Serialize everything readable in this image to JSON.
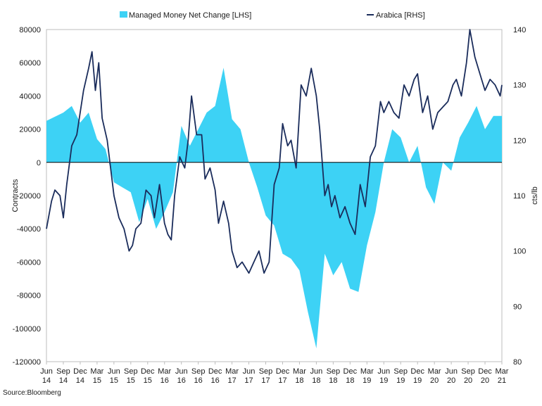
{
  "chart_data": {
    "type": "area+line",
    "title": "",
    "legend": [
      "Managed Money Net Change [LHS]",
      "Arabica [RHS]"
    ],
    "legend_position": "top",
    "ylabel_left": "Contracts",
    "ylabel_right": "cts/lb",
    "ylim_left": [
      -120000,
      80000
    ],
    "ylim_right": [
      80,
      140
    ],
    "yticks_left": [
      "80000",
      "60000",
      "40000",
      "20000",
      "0",
      "-20000",
      "-40000",
      "-60000",
      "-80000",
      "-100000",
      "-120000"
    ],
    "yticks_right": [
      "140",
      "130",
      "120",
      "110",
      "100",
      "90",
      "80"
    ],
    "xticks_month": [
      "Jun",
      "Sep",
      "Dec",
      "Mar",
      "Jun",
      "Sep",
      "Dec",
      "Mar",
      "Jun",
      "Sep",
      "Dec",
      "Mar",
      "Jun",
      "Sep",
      "Dec",
      "Mar",
      "Jun",
      "Sep",
      "Dec",
      "Mar",
      "Jun",
      "Sep",
      "Dec",
      "Mar",
      "Jun",
      "Sep",
      "Dec",
      "Mar"
    ],
    "xticks_year": [
      "14",
      "14",
      "14",
      "15",
      "15",
      "15",
      "15",
      "16",
      "16",
      "16",
      "16",
      "17",
      "17",
      "17",
      "17",
      "18",
      "18",
      "18",
      "18",
      "19",
      "19",
      "19",
      "19",
      "20",
      "20",
      "20",
      "20",
      "21"
    ],
    "series": [
      {
        "name": "Managed Money Net Change [LHS]",
        "axis": "left",
        "color": "#3dd2f5",
        "x": [
          0,
          1,
          1.5,
          2,
          2.5,
          3,
          3.5,
          4,
          4.5,
          5,
          5.5,
          6,
          6.5,
          7,
          7.5,
          8,
          8.5,
          9,
          9.5,
          10,
          10.5,
          11,
          11.5,
          12,
          12.5,
          13,
          13.5,
          14,
          14.5,
          15,
          15.5,
          16,
          16.5,
          17,
          17.5,
          18,
          18.5,
          19,
          19.5,
          20,
          20.5,
          21,
          21.5,
          22,
          22.5,
          23,
          23.5,
          24,
          24.5,
          25,
          25.5,
          26,
          26.5,
          27
        ],
        "values": [
          25000,
          30000,
          34000,
          24000,
          30000,
          14000,
          8000,
          -12000,
          -15000,
          -18000,
          -36000,
          -22000,
          -40000,
          -30000,
          -18000,
          22000,
          10000,
          20000,
          30000,
          34000,
          57000,
          26000,
          20000,
          0,
          -15000,
          -32000,
          -38000,
          -55000,
          -58000,
          -65000,
          -90000,
          -112000,
          -55000,
          -68000,
          -60000,
          -76000,
          -78000,
          -50000,
          -30000,
          0,
          20000,
          15000,
          0,
          10000,
          -15000,
          -25000,
          0,
          -5000,
          15000,
          24000,
          34000,
          20000,
          28000,
          28000
        ]
      },
      {
        "name": "Arabica [RHS]",
        "axis": "right",
        "color": "#1a2c5b",
        "x": [
          0,
          0.3,
          0.5,
          0.8,
          1,
          1.2,
          1.5,
          1.8,
          2,
          2.2,
          2.5,
          2.7,
          2.9,
          3.1,
          3.3,
          3.6,
          4,
          4.3,
          4.6,
          4.9,
          5.1,
          5.3,
          5.6,
          5.9,
          6.2,
          6.4,
          6.7,
          7,
          7.2,
          7.4,
          7.6,
          7.9,
          8.2,
          8.4,
          8.6,
          8.9,
          9.2,
          9.4,
          9.7,
          10,
          10.2,
          10.5,
          10.8,
          11,
          11.3,
          11.6,
          12,
          12.3,
          12.6,
          12.9,
          13.2,
          13.5,
          13.8,
          14,
          14.3,
          14.5,
          14.8,
          15.1,
          15.4,
          15.7,
          16,
          16.2,
          16.5,
          16.7,
          16.9,
          17.1,
          17.4,
          17.7,
          18,
          18.3,
          18.6,
          18.9,
          19.2,
          19.5,
          19.8,
          20,
          20.3,
          20.6,
          20.9,
          21.2,
          21.5,
          21.8,
          22,
          22.3,
          22.6,
          22.9,
          23.2,
          23.5,
          23.8,
          24.1,
          24.3,
          24.6,
          24.9,
          25.1,
          25.4,
          25.7,
          26,
          26.3,
          26.6,
          26.9,
          27
        ],
        "values": [
          104,
          109,
          111,
          110,
          106,
          112,
          119,
          121,
          125,
          129,
          133,
          136,
          129,
          134,
          124,
          120,
          110,
          106,
          104,
          100,
          101,
          104,
          105,
          111,
          110,
          106,
          112,
          105,
          103,
          102,
          110,
          117,
          115,
          120,
          128,
          121,
          121,
          113,
          115,
          111,
          105,
          109,
          105,
          100,
          97,
          98,
          96,
          98,
          100,
          96,
          98,
          112,
          115,
          123,
          119,
          120,
          115,
          130,
          128,
          133,
          128,
          122,
          110,
          112,
          108,
          110,
          106,
          108,
          105,
          103,
          112,
          108,
          117,
          119,
          127,
          125,
          127,
          125,
          124,
          130,
          128,
          131,
          132,
          125,
          128,
          122,
          125,
          126,
          127,
          130,
          131,
          128,
          134,
          140,
          135,
          132,
          129,
          131,
          130,
          128,
          130
        ]
      }
    ]
  },
  "source_text": "Source:Bloomberg"
}
